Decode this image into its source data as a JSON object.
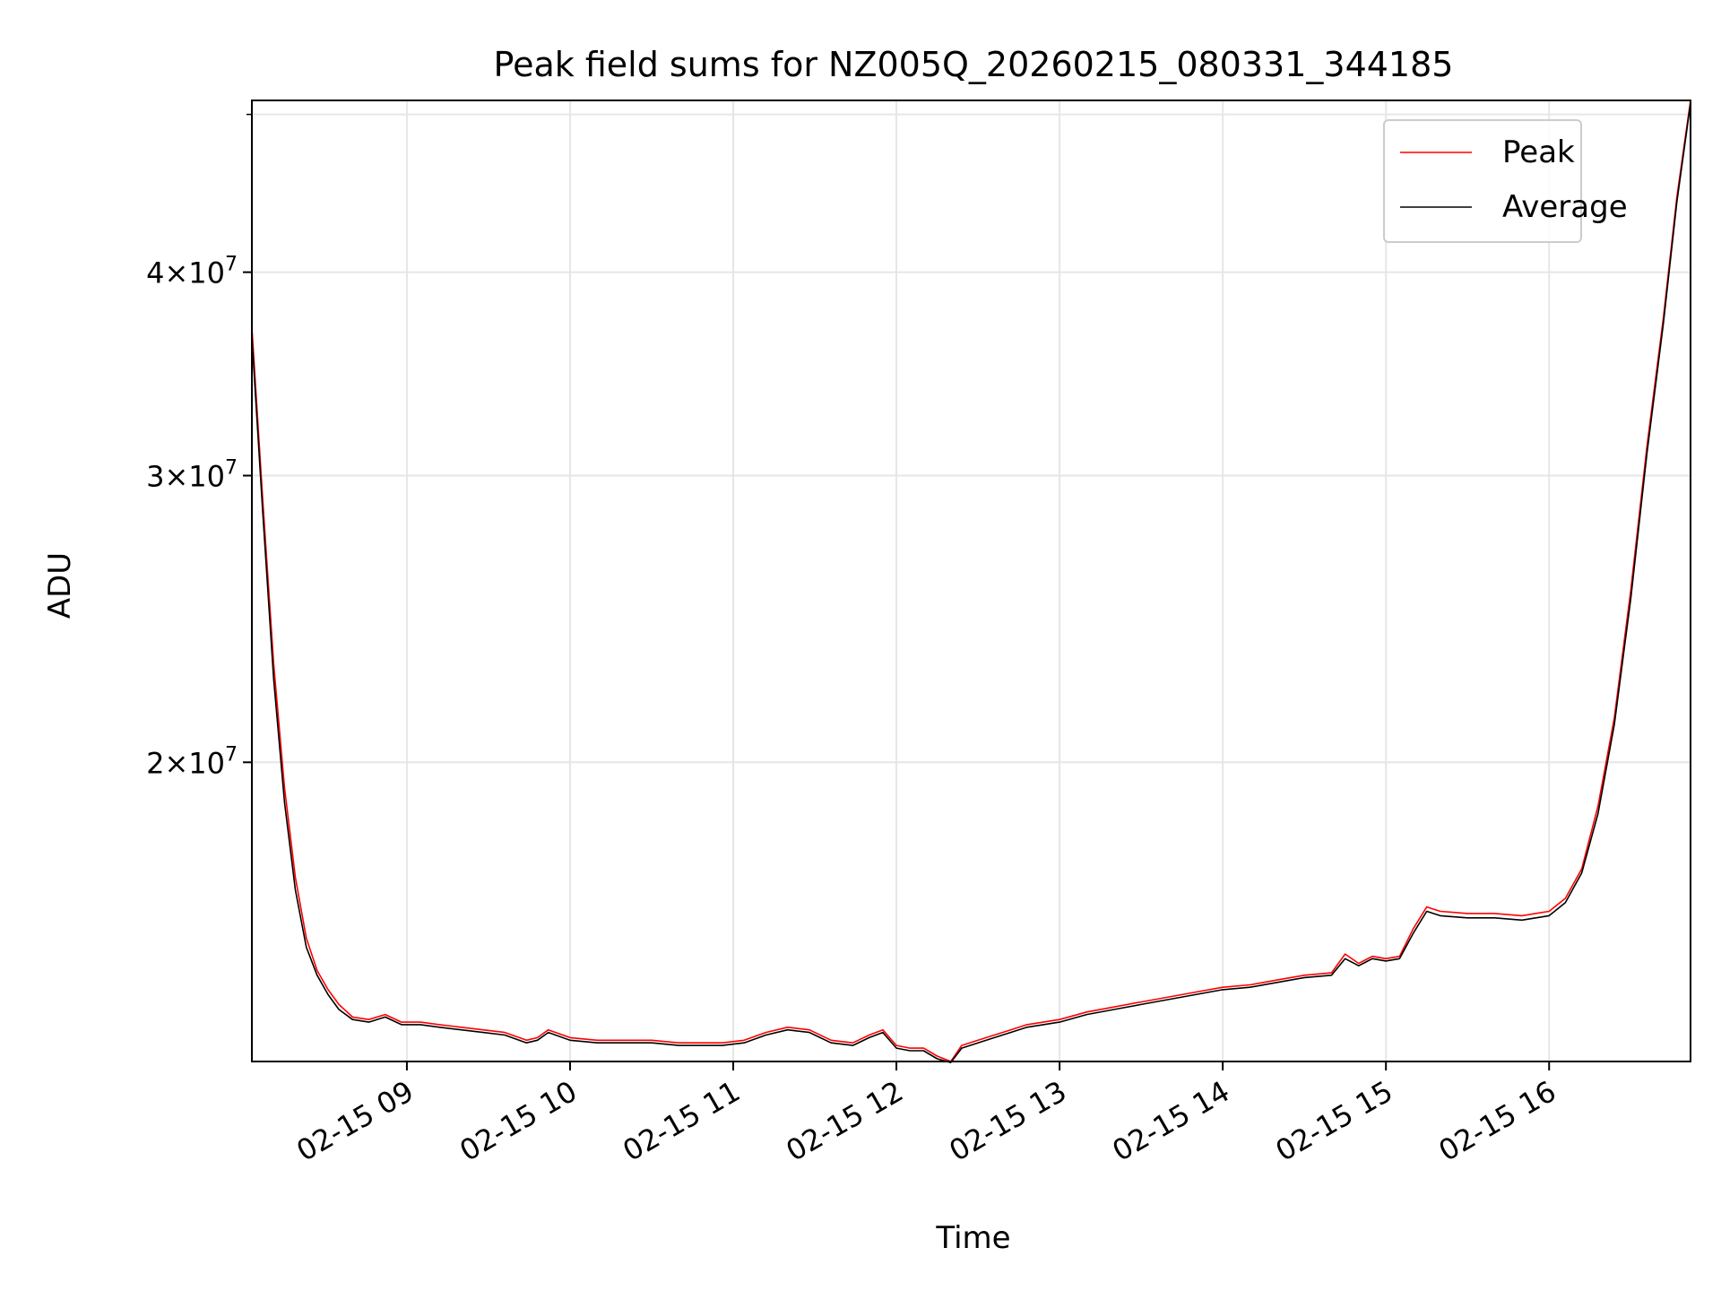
{
  "chart_data": {
    "type": "line",
    "title": "Peak field sums for NZ005Q_20260215_080331_344185",
    "xlabel": "Time",
    "ylabel": "ADU",
    "x_scale": "time",
    "y_scale": "log",
    "xlim": [
      "2026-02-15 08:03",
      "2026-02-15 16:52"
    ],
    "ylim": [
      13100000,
      51000000
    ],
    "grid": true,
    "legend_position": "top-right",
    "x_ticks": [
      {
        "time": "2026-02-15 09:00",
        "label": "02-15 09"
      },
      {
        "time": "2026-02-15 10:00",
        "label": "02-15 10"
      },
      {
        "time": "2026-02-15 11:00",
        "label": "02-15 11"
      },
      {
        "time": "2026-02-15 12:00",
        "label": "02-15 12"
      },
      {
        "time": "2026-02-15 13:00",
        "label": "02-15 13"
      },
      {
        "time": "2026-02-15 14:00",
        "label": "02-15 14"
      },
      {
        "time": "2026-02-15 15:00",
        "label": "02-15 15"
      },
      {
        "time": "2026-02-15 16:00",
        "label": "02-15 16"
      }
    ],
    "y_ticks": [
      {
        "value": 20000000,
        "base": "2",
        "exponent": "7"
      },
      {
        "value": 30000000,
        "base": "3",
        "exponent": "7"
      },
      {
        "value": 40000000,
        "base": "4",
        "exponent": "7"
      }
    ],
    "y_minor_ticks": [
      50000000
    ],
    "series": [
      {
        "name": "Peak",
        "color": "#ff0000",
        "x": [
          "2026-02-15 08:03",
          "2026-02-15 08:07",
          "2026-02-15 08:11",
          "2026-02-15 08:15",
          "2026-02-15 08:19",
          "2026-02-15 08:23",
          "2026-02-15 08:27",
          "2026-02-15 08:31",
          "2026-02-15 08:35",
          "2026-02-15 08:40",
          "2026-02-15 08:46",
          "2026-02-15 08:52",
          "2026-02-15 08:58",
          "2026-02-15 09:05",
          "2026-02-15 09:12",
          "2026-02-15 09:20",
          "2026-02-15 09:28",
          "2026-02-15 09:36",
          "2026-02-15 09:44",
          "2026-02-15 09:48",
          "2026-02-15 09:52",
          "2026-02-15 10:00",
          "2026-02-15 10:10",
          "2026-02-15 10:20",
          "2026-02-15 10:30",
          "2026-02-15 10:40",
          "2026-02-15 10:48",
          "2026-02-15 10:56",
          "2026-02-15 11:04",
          "2026-02-15 11:12",
          "2026-02-15 11:20",
          "2026-02-15 11:28",
          "2026-02-15 11:36",
          "2026-02-15 11:44",
          "2026-02-15 11:50",
          "2026-02-15 11:55",
          "2026-02-15 12:00",
          "2026-02-15 12:05",
          "2026-02-15 12:10",
          "2026-02-15 12:15",
          "2026-02-15 12:20",
          "2026-02-15 12:24",
          "2026-02-15 12:30",
          "2026-02-15 12:36",
          "2026-02-15 12:42",
          "2026-02-15 12:48",
          "2026-02-15 12:54",
          "2026-02-15 13:00",
          "2026-02-15 13:10",
          "2026-02-15 13:20",
          "2026-02-15 13:30",
          "2026-02-15 13:40",
          "2026-02-15 13:50",
          "2026-02-15 14:00",
          "2026-02-15 14:10",
          "2026-02-15 14:20",
          "2026-02-15 14:30",
          "2026-02-15 14:40",
          "2026-02-15 14:45",
          "2026-02-15 14:50",
          "2026-02-15 14:55",
          "2026-02-15 15:00",
          "2026-02-15 15:05",
          "2026-02-15 15:10",
          "2026-02-15 15:15",
          "2026-02-15 15:20",
          "2026-02-15 15:30",
          "2026-02-15 15:40",
          "2026-02-15 15:50",
          "2026-02-15 16:00",
          "2026-02-15 16:06",
          "2026-02-15 16:12",
          "2026-02-15 16:18",
          "2026-02-15 16:24",
          "2026-02-15 16:30",
          "2026-02-15 16:36",
          "2026-02-15 16:42",
          "2026-02-15 16:47",
          "2026-02-15 16:52"
        ],
        "y": [
          37000000,
          29000000,
          23000000,
          19300000,
          17000000,
          15600000,
          14900000,
          14500000,
          14200000,
          13950000,
          13900000,
          14000000,
          13850000,
          13850000,
          13800000,
          13750000,
          13700000,
          13650000,
          13500000,
          13550000,
          13700000,
          13550000,
          13500000,
          13500000,
          13500000,
          13450000,
          13450000,
          13450000,
          13500000,
          13650000,
          13750000,
          13700000,
          13500000,
          13450000,
          13600000,
          13700000,
          13400000,
          13350000,
          13350000,
          13200000,
          13100000,
          13400000,
          13500000,
          13600000,
          13700000,
          13800000,
          13850000,
          13900000,
          14050000,
          14150000,
          14250000,
          14350000,
          14450000,
          14550000,
          14600000,
          14700000,
          14800000,
          14850000,
          15250000,
          15050000,
          15200000,
          15150000,
          15200000,
          15800000,
          16300000,
          16200000,
          16150000,
          16150000,
          16100000,
          16200000,
          16500000,
          17200000,
          18800000,
          21300000,
          25500000,
          31300000,
          37500000,
          44500000,
          51000000
        ]
      },
      {
        "name": "Average",
        "color": "#000000",
        "x": [
          "2026-02-15 08:03",
          "2026-02-15 08:07",
          "2026-02-15 08:11",
          "2026-02-15 08:15",
          "2026-02-15 08:19",
          "2026-02-15 08:23",
          "2026-02-15 08:27",
          "2026-02-15 08:31",
          "2026-02-15 08:35",
          "2026-02-15 08:40",
          "2026-02-15 08:46",
          "2026-02-15 08:52",
          "2026-02-15 08:58",
          "2026-02-15 09:05",
          "2026-02-15 09:12",
          "2026-02-15 09:20",
          "2026-02-15 09:28",
          "2026-02-15 09:36",
          "2026-02-15 09:44",
          "2026-02-15 09:48",
          "2026-02-15 09:52",
          "2026-02-15 10:00",
          "2026-02-15 10:10",
          "2026-02-15 10:20",
          "2026-02-15 10:30",
          "2026-02-15 10:40",
          "2026-02-15 10:48",
          "2026-02-15 10:56",
          "2026-02-15 11:04",
          "2026-02-15 11:12",
          "2026-02-15 11:20",
          "2026-02-15 11:28",
          "2026-02-15 11:36",
          "2026-02-15 11:44",
          "2026-02-15 11:50",
          "2026-02-15 11:55",
          "2026-02-15 12:00",
          "2026-02-15 12:05",
          "2026-02-15 12:10",
          "2026-02-15 12:15",
          "2026-02-15 12:20",
          "2026-02-15 12:24",
          "2026-02-15 12:30",
          "2026-02-15 12:36",
          "2026-02-15 12:42",
          "2026-02-15 12:48",
          "2026-02-15 12:54",
          "2026-02-15 13:00",
          "2026-02-15 13:10",
          "2026-02-15 13:20",
          "2026-02-15 13:30",
          "2026-02-15 13:40",
          "2026-02-15 13:50",
          "2026-02-15 14:00",
          "2026-02-15 14:10",
          "2026-02-15 14:20",
          "2026-02-15 14:30",
          "2026-02-15 14:40",
          "2026-02-15 14:45",
          "2026-02-15 14:50",
          "2026-02-15 14:55",
          "2026-02-15 15:00",
          "2026-02-15 15:05",
          "2026-02-15 15:10",
          "2026-02-15 15:15",
          "2026-02-15 15:20",
          "2026-02-15 15:30",
          "2026-02-15 15:40",
          "2026-02-15 15:50",
          "2026-02-15 16:00",
          "2026-02-15 16:06",
          "2026-02-15 16:12",
          "2026-02-15 16:18",
          "2026-02-15 16:24",
          "2026-02-15 16:30",
          "2026-02-15 16:36",
          "2026-02-15 16:42",
          "2026-02-15 16:47",
          "2026-02-15 16:52"
        ],
        "y": [
          36500000,
          28500000,
          22500000,
          18900000,
          16700000,
          15400000,
          14800000,
          14400000,
          14100000,
          13900000,
          13850000,
          13950000,
          13800000,
          13800000,
          13750000,
          13700000,
          13650000,
          13600000,
          13450000,
          13500000,
          13650000,
          13500000,
          13450000,
          13450000,
          13450000,
          13400000,
          13400000,
          13400000,
          13450000,
          13600000,
          13700000,
          13650000,
          13450000,
          13400000,
          13550000,
          13650000,
          13350000,
          13300000,
          13300000,
          13150000,
          13080000,
          13350000,
          13450000,
          13550000,
          13650000,
          13750000,
          13800000,
          13850000,
          14000000,
          14100000,
          14200000,
          14300000,
          14400000,
          14500000,
          14550000,
          14650000,
          14750000,
          14800000,
          15150000,
          15000000,
          15150000,
          15100000,
          15150000,
          15700000,
          16200000,
          16100000,
          16050000,
          16050000,
          16000000,
          16100000,
          16400000,
          17100000,
          18600000,
          21100000,
          25200000,
          31000000,
          37200000,
          44200000,
          50800000
        ]
      }
    ]
  }
}
